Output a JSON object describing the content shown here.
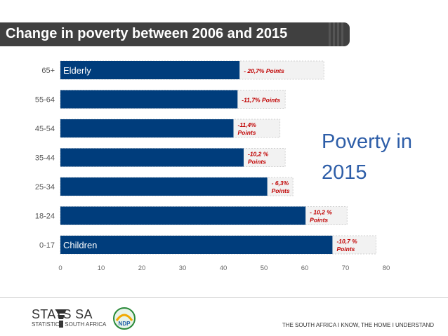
{
  "title": "Change in poverty between 2006 and 2015",
  "side_label_line1": "Poverty in",
  "side_label_line2": "2015",
  "footer": {
    "org_name": "STATS SA",
    "org_subtitle": "STATISTICS SOUTH AFRICA",
    "slogan": "THE SOUTH AFRICA I KNOW, THE HOME I UNDERSTAND",
    "ndp_logo_text": "NDP"
  },
  "colors": {
    "bar": "#003d7c",
    "ghost": "#f2f2f2",
    "annotation": "#c00000",
    "side_label": "#2e5ea8",
    "title_bar": "#404040"
  },
  "chart_data": {
    "type": "bar",
    "orientation": "horizontal",
    "categories": [
      "65+",
      "55-64",
      "45-54",
      "35-44",
      "25-34",
      "18-24",
      "0-17"
    ],
    "series": [
      {
        "values": [
          44,
          43.5,
          42.5,
          45,
          50.8,
          60.2,
          66.8
        ]
      }
    ],
    "previous_values": [
      64.7,
      55.2,
      53.9,
      55.2,
      57.1,
      70.4,
      77.5
    ],
    "bar_inner_labels": [
      "Elderly",
      "",
      "",
      "",
      "",
      "",
      "Children"
    ],
    "annotations": [
      [
        "- 20,7% Points"
      ],
      [
        "-11,7% Points"
      ],
      [
        "-11,4%",
        "Points"
      ],
      [
        "-10,2 %",
        "Points"
      ],
      [
        "- 6,3%",
        "Points"
      ],
      [
        "- 10,2 %",
        "Points"
      ],
      [
        "-10,7 %",
        "Points"
      ]
    ],
    "xlim": [
      0,
      80
    ],
    "xticks": [
      0,
      10,
      20,
      30,
      40,
      50,
      60,
      70,
      80
    ],
    "title": "",
    "xlabel": "",
    "ylabel": "",
    "grid": false,
    "legend": "none"
  }
}
